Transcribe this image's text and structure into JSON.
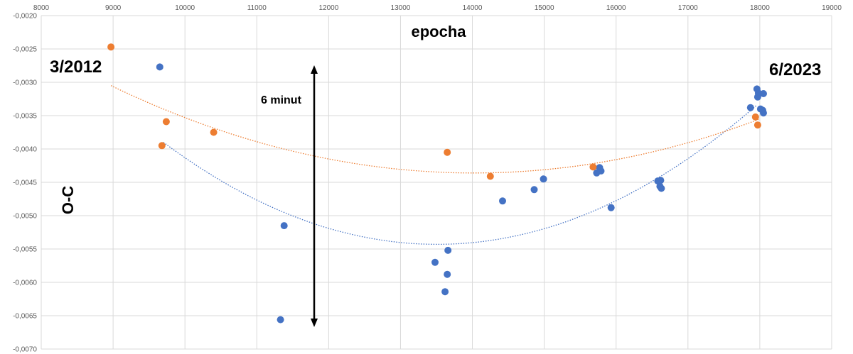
{
  "chart_data": {
    "type": "scatter",
    "xlim": [
      8000,
      19000
    ],
    "ylim": [
      -0.007,
      -0.002
    ],
    "x_ticks": [
      "8000",
      "9000",
      "10000",
      "11000",
      "12000",
      "13000",
      "14000",
      "15000",
      "16000",
      "17000",
      "18000",
      "19000"
    ],
    "y_ticks": [
      "-0,0020",
      "-0,0025",
      "-0,0030",
      "-0,0035",
      "-0,0040",
      "-0,0045",
      "-0,0050",
      "-0,0055",
      "-0,0060",
      "-0,0065",
      "-0,0070"
    ],
    "xlabel": "epocha",
    "ylabel": "O-C",
    "grid": true,
    "legend": "none",
    "series": [
      {
        "color": "#4472C4",
        "trendline": "polynomial-2-dotted",
        "points": [
          [
            9650,
            -0.00277
          ],
          [
            11380,
            -0.00515
          ],
          [
            11330,
            -0.00656
          ],
          [
            13480,
            -0.0057
          ],
          [
            13620,
            -0.00614
          ],
          [
            13650,
            -0.00588
          ],
          [
            13660,
            -0.00552
          ],
          [
            14420,
            -0.00478
          ],
          [
            14860,
            -0.00461
          ],
          [
            14990,
            -0.00445
          ],
          [
            15730,
            -0.00436
          ],
          [
            15770,
            -0.00428
          ],
          [
            15790,
            -0.00433
          ],
          [
            15930,
            -0.00488
          ],
          [
            16580,
            -0.00448
          ],
          [
            16610,
            -0.00456
          ],
          [
            16620,
            -0.00447
          ],
          [
            16630,
            -0.00459
          ],
          [
            17870,
            -0.00338
          ],
          [
            17960,
            -0.0031
          ],
          [
            17970,
            -0.00322
          ],
          [
            17980,
            -0.00316
          ],
          [
            18010,
            -0.0034
          ],
          [
            18040,
            -0.00342
          ],
          [
            18050,
            -0.00317
          ],
          [
            18050,
            -0.00346
          ]
        ],
        "trend_points": [
          [
            9700,
            -0.0039
          ],
          [
            13500,
            -0.00543
          ],
          [
            17950,
            -0.00335
          ]
        ]
      },
      {
        "color": "#ED7D31",
        "trendline": "polynomial-2-dotted",
        "points": [
          [
            8970,
            -0.00247
          ],
          [
            9680,
            -0.00395
          ],
          [
            9740,
            -0.00359
          ],
          [
            10400,
            -0.00375
          ],
          [
            13650,
            -0.00405
          ],
          [
            14250,
            -0.00441
          ],
          [
            15680,
            -0.00427
          ],
          [
            17940,
            -0.00352
          ],
          [
            17970,
            -0.00364
          ]
        ],
        "trend_points": [
          [
            8970,
            -0.00305
          ],
          [
            14000,
            -0.00436
          ],
          [
            18000,
            -0.00355
          ]
        ]
      }
    ],
    "annotations": [
      {
        "text": "3/2012"
      },
      {
        "text": "6/2023"
      },
      {
        "text": "6 minut"
      }
    ]
  }
}
